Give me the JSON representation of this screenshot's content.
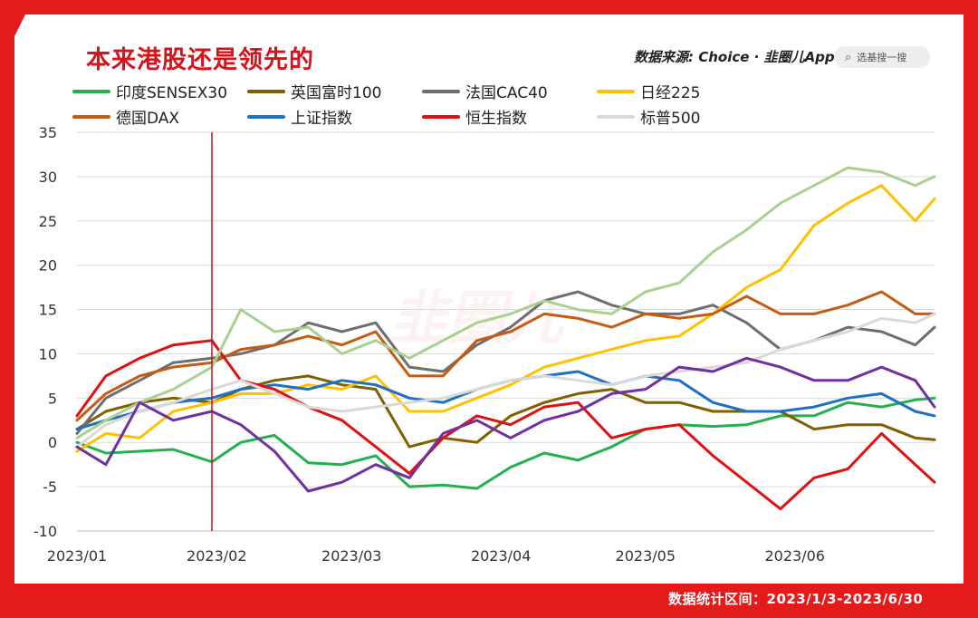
{
  "header": {
    "title": "本来港股还是领先的",
    "source": "数据来源: Choice · 韭圈儿App",
    "search_placeholder": "选基搜一搜"
  },
  "footer": {
    "note": "数据统计区间：2023/1/3-2023/6/30"
  },
  "watermark": "韭圈儿",
  "colors": {
    "background": "#e51b1b",
    "card": "#ffffff",
    "title": "#d6121b",
    "marker": "#c0141c"
  },
  "chart_data": {
    "type": "line",
    "title": "本来港股还是领先的",
    "xlabel": "",
    "ylabel": "",
    "ylim": [
      -10,
      35
    ],
    "yticks": [
      -10,
      -5,
      0,
      5,
      10,
      15,
      20,
      25,
      30,
      35
    ],
    "x_tick_labels": [
      "2023/01",
      "2023/02",
      "2023/03",
      "2023/04",
      "2023/05",
      "2023/06"
    ],
    "x_tick_dates": [
      "2023-01-03",
      "2023-02-01",
      "2023-03-01",
      "2023-04-01",
      "2023-05-01",
      "2023-06-01"
    ],
    "x_range": [
      "2023-01-03",
      "2023-06-30"
    ],
    "marker_date": "2023-01-31",
    "dates": [
      "2023-01-03",
      "2023-01-09",
      "2023-01-16",
      "2023-01-23",
      "2023-01-31",
      "2023-02-06",
      "2023-02-13",
      "2023-02-20",
      "2023-02-27",
      "2023-03-06",
      "2023-03-13",
      "2023-03-20",
      "2023-03-27",
      "2023-04-03",
      "2023-04-10",
      "2023-04-17",
      "2023-04-24",
      "2023-05-01",
      "2023-05-08",
      "2023-05-15",
      "2023-05-22",
      "2023-05-29",
      "2023-06-05",
      "2023-06-12",
      "2023-06-19",
      "2023-06-26",
      "2023-06-30"
    ],
    "grid": "horizontal",
    "legend_position": "top",
    "series": [
      {
        "name": "印度SENSEX30",
        "color": "#22b14c",
        "values": [
          0,
          -1.2,
          -1.0,
          -0.8,
          -2.2,
          0,
          0.8,
          -2.3,
          -2.5,
          -1.5,
          -5.0,
          -4.8,
          -5.2,
          -2.8,
          -1.2,
          -2.0,
          -0.5,
          1.5,
          2.0,
          1.8,
          2.0,
          3.0,
          3.0,
          4.5,
          4.0,
          4.8,
          5.0
        ]
      },
      {
        "name": "英国富时100",
        "color": "#7f6000",
        "values": [
          1.5,
          3.5,
          4.5,
          5.0,
          4.5,
          6.0,
          7.0,
          7.5,
          6.5,
          6.0,
          -0.5,
          0.5,
          0.0,
          3.0,
          4.5,
          5.5,
          6.0,
          4.5,
          4.5,
          3.5,
          3.5,
          3.5,
          1.5,
          2.0,
          2.0,
          0.5,
          0.3
        ]
      },
      {
        "name": "法国CAC40",
        "color": "#6e6e6e",
        "values": [
          1.0,
          5.0,
          7.0,
          9.0,
          9.5,
          10.0,
          11.0,
          13.5,
          12.5,
          13.5,
          8.5,
          8.0,
          11.0,
          13.0,
          16.0,
          17.0,
          15.5,
          14.5,
          14.5,
          15.5,
          13.5,
          10.5,
          11.5,
          13.0,
          12.5,
          11.0,
          13.0
        ]
      },
      {
        "name": "日经225",
        "color": "#ffc000",
        "values": [
          -1.0,
          1.0,
          0.5,
          3.5,
          4.5,
          5.5,
          5.5,
          6.5,
          6.0,
          7.5,
          3.5,
          3.5,
          5.0,
          6.5,
          8.5,
          9.5,
          10.5,
          11.5,
          12.0,
          14.5,
          17.5,
          19.5,
          24.5,
          27.0,
          29.0,
          25.0,
          27.5
        ]
      },
      {
        "name": "德国DAX",
        "color": "#c55a11",
        "values": [
          2.5,
          5.5,
          7.5,
          8.5,
          9.0,
          10.5,
          11.0,
          12.0,
          11.0,
          12.5,
          7.5,
          7.5,
          11.5,
          12.5,
          14.5,
          14.0,
          13.0,
          14.5,
          14.0,
          14.5,
          16.5,
          14.5,
          14.5,
          15.5,
          17.0,
          14.5,
          14.5
        ]
      },
      {
        "name": "上证指数",
        "color": "#1f6fc5",
        "values": [
          1.5,
          2.5,
          3.5,
          4.5,
          5.0,
          6.0,
          6.5,
          6.0,
          7.0,
          6.5,
          5.0,
          4.5,
          6.0,
          7.0,
          7.5,
          8.0,
          6.5,
          7.5,
          7.0,
          4.5,
          3.5,
          3.5,
          4.0,
          5.0,
          5.5,
          3.5,
          3.0
        ]
      },
      {
        "name": "恒生指数",
        "color": "#e01010",
        "values": [
          3.0,
          7.5,
          9.5,
          11.0,
          11.5,
          7.0,
          6.0,
          4.0,
          2.5,
          -0.5,
          -3.5,
          0.5,
          3.0,
          2.0,
          4.0,
          4.5,
          0.5,
          1.5,
          2.0,
          -1.5,
          -4.5,
          -7.5,
          -4.0,
          -3.0,
          1.0,
          -2.5,
          -4.5
        ]
      },
      {
        "name": "标普500",
        "color": "#d9d9d9",
        "values": [
          -0.5,
          2.0,
          3.5,
          4.5,
          6.0,
          7.0,
          5.5,
          4.0,
          3.5,
          4.0,
          4.5,
          5.0,
          6.0,
          7.0,
          7.5,
          7.0,
          6.5,
          7.5,
          8.0,
          8.5,
          9.0,
          10.5,
          11.5,
          12.5,
          14.0,
          13.5,
          14.5
        ]
      },
      {
        "name": "印度SENSEX30 ",
        "color": "#a9d18e",
        "values": [
          0.5,
          2.5,
          4.5,
          6.0,
          8.5,
          15.0,
          12.5,
          13.0,
          10.0,
          11.5,
          9.5,
          11.5,
          13.5,
          14.5,
          16.0,
          15.0,
          14.5,
          17.0,
          18.0,
          21.5,
          24.0,
          27.0,
          29.0,
          31.0,
          30.5,
          29.0,
          30.0
        ]
      },
      {
        "name": "",
        "color": "#7030a0",
        "values": [
          -0.5,
          -2.5,
          4.5,
          2.5,
          3.5,
          2.0,
          -1.0,
          -5.5,
          -4.5,
          -2.5,
          -4.0,
          1.0,
          2.5,
          0.5,
          2.5,
          3.5,
          5.5,
          6.0,
          8.5,
          8.0,
          9.5,
          8.5,
          7.0,
          7.0,
          8.5,
          7.0,
          4.0
        ]
      }
    ]
  }
}
